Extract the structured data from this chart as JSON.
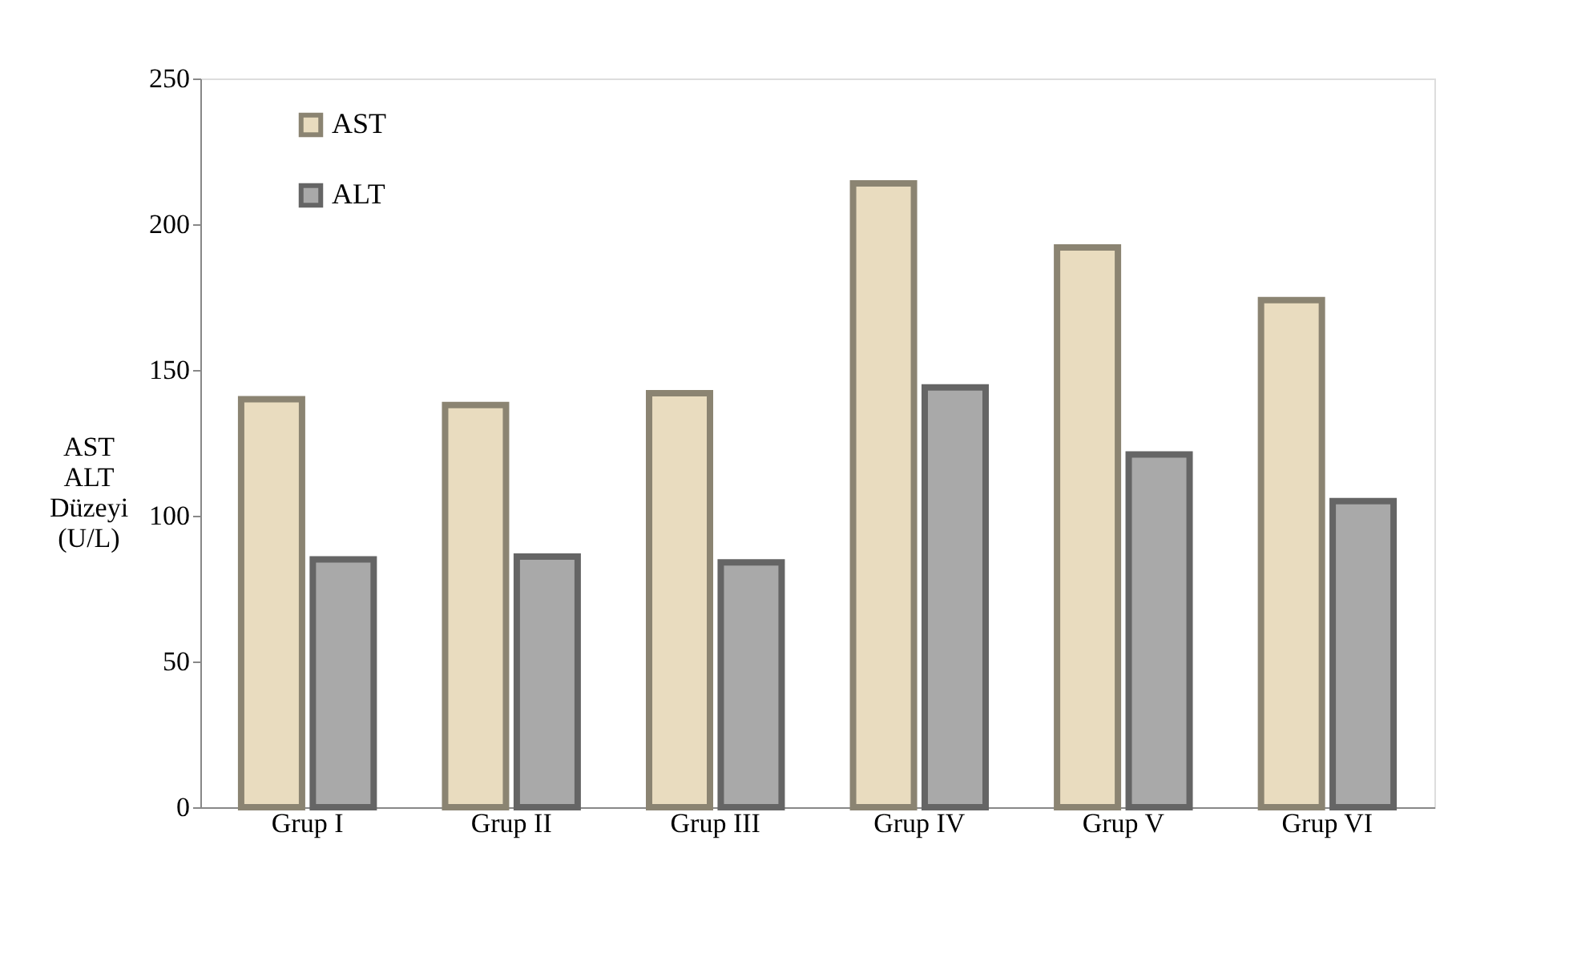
{
  "chart_data": {
    "type": "bar",
    "ylabel": "AST\nALT\nDüzeyi\n(U/L)",
    "categories": [
      "Grup I",
      "Grup II",
      "Grup III",
      "Grup IV",
      "Grup V",
      "Grup VI"
    ],
    "series": [
      {
        "name": "AST",
        "color": "#e9dcbf",
        "values": [
          140,
          138,
          142,
          214,
          192,
          174
        ]
      },
      {
        "name": "ALT",
        "color": "#a9a9a9",
        "values": [
          85,
          86,
          84,
          144,
          121,
          105
        ]
      }
    ],
    "ylim": [
      0,
      250
    ],
    "yticks": [
      0,
      50,
      100,
      150,
      200,
      250
    ],
    "grid": false,
    "legend": "top left"
  }
}
